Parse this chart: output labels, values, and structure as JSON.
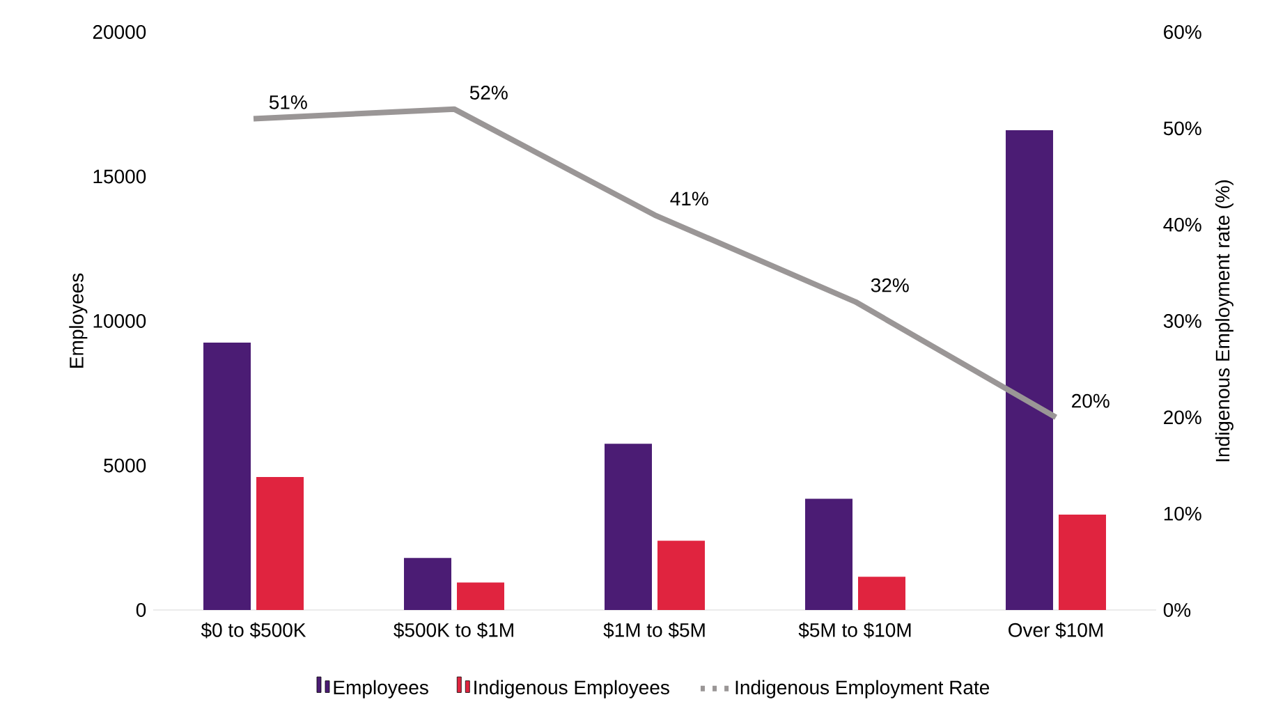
{
  "chart_data": {
    "type": "bar",
    "categories": [
      "$0 to $500K",
      "$500K to $1M",
      "$1M to $5M",
      "$5M to $10M",
      "Over $10M"
    ],
    "ylabel": "Employees",
    "y2label": "Indigenous Employment rate (%)",
    "ylim": [
      0,
      20000
    ],
    "yticks": [
      0,
      5000,
      10000,
      15000,
      20000
    ],
    "y2lim": [
      0,
      60
    ],
    "y2ticks": [
      {
        "value": 0,
        "label": "0%"
      },
      {
        "value": 10,
        "label": "10%"
      },
      {
        "value": 20,
        "label": "20%"
      },
      {
        "value": 30,
        "label": "30%"
      },
      {
        "value": 40,
        "label": "40%"
      },
      {
        "value": 50,
        "label": "50%"
      },
      {
        "value": 60,
        "label": "60%"
      }
    ],
    "legend": "bottom",
    "series": [
      {
        "name": "Employees",
        "color": "#4b1c74",
        "values": [
          9250,
          1800,
          5750,
          3850,
          16600
        ]
      },
      {
        "name": "Indigenous Employees",
        "color": "#e0243f",
        "values": [
          4600,
          950,
          2400,
          1150,
          3300
        ]
      },
      {
        "name": "Indigenous Employment Rate",
        "type": "line",
        "axis": "y2",
        "color": "#9a9696",
        "values": [
          51,
          52,
          41,
          32,
          20
        ],
        "value_labels": [
          "51%",
          "52%",
          "41%",
          "32%",
          "20%"
        ]
      }
    ]
  }
}
